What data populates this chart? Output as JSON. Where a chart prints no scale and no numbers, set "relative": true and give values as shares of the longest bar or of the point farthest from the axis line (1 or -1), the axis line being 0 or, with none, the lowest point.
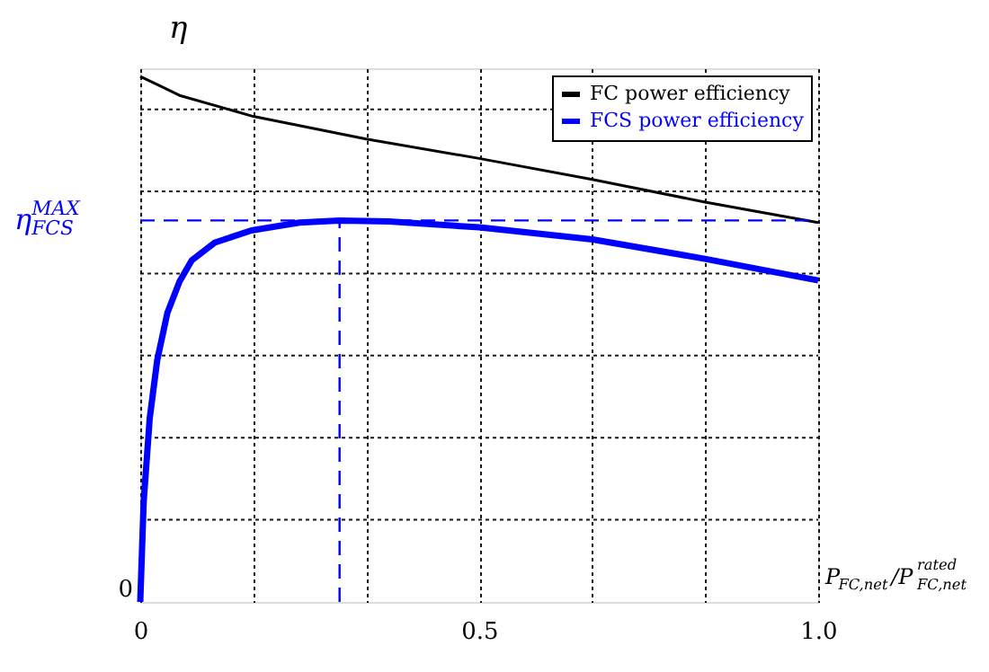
{
  "chart_data": {
    "type": "line",
    "relative": true,
    "xlabel": "P$_{FC,net}$/P$^{rated}$$_{FC,net}$",
    "ylabel": "η",
    "xlim": [
      0,
      1
    ],
    "xticks": [
      0,
      {
        "value": 0.1667,
        "label": null
      },
      {
        "value": 0.3333,
        "label": null
      },
      0.5,
      {
        "value": 0.6667,
        "label": null
      },
      {
        "value": 0.8333,
        "label": null
      },
      {
        "value": 1,
        "label": "1.0"
      }
    ],
    "grid": true,
    "legend": "top right",
    "line_style": "solid",
    "series": [
      {
        "name": "FC power efficiency",
        "color": "#000000",
        "x": [
          0,
          0.023,
          0.058,
          0.1667,
          0.3333,
          0.5,
          0.6667,
          0.8333,
          1.0
        ],
        "values": [
          1.0,
          0.986,
          0.964,
          0.924,
          0.881,
          0.844,
          0.804,
          0.761,
          0.722
        ]
      },
      {
        "name": "FCS power efficiency",
        "color": "#0000ff",
        "x": [
          0,
          0.005,
          0.014,
          0.025,
          0.04,
          0.058,
          0.076,
          0.11,
          0.164,
          0.235,
          0.294,
          0.367,
          0.5,
          0.667,
          0.833,
          1.0
        ],
        "values": [
          0,
          0.19,
          0.35,
          0.46,
          0.55,
          0.61,
          0.65,
          0.684,
          0.707,
          0.722,
          0.726,
          0.724,
          0.713,
          0.69,
          0.653,
          0.612
        ]
      }
    ],
    "ref_lines": [
      {
        "axis": "y",
        "value": 0.726,
        "label": "η$_{FCS}$$^{MAX}$",
        "color": "#0000ff",
        "line_style": "dashed"
      },
      {
        "axis": "x",
        "value": 0.294,
        "color": "#0000ff",
        "line_style": "dashed"
      }
    ],
    "annotations": [
      "0"
    ]
  }
}
